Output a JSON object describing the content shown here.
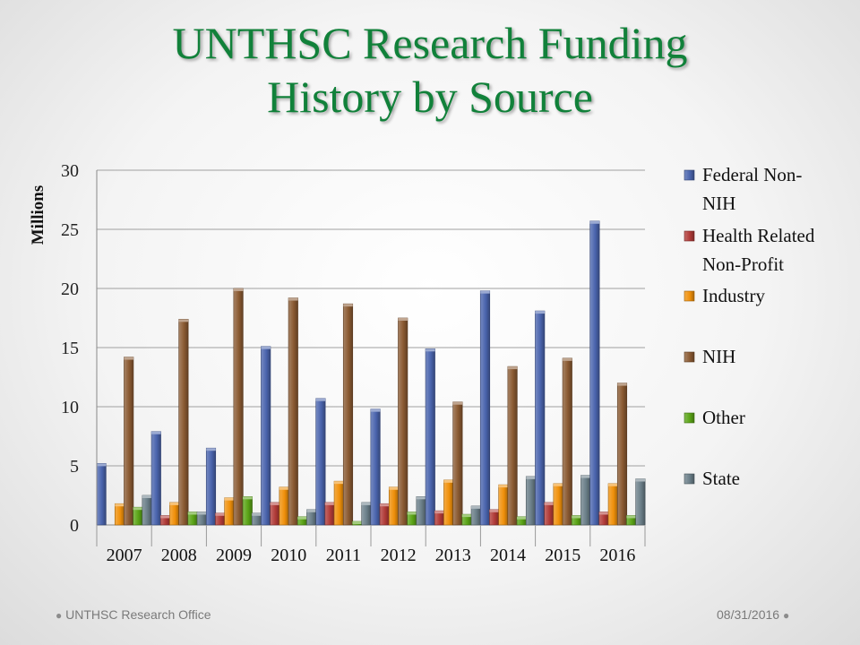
{
  "slide": {
    "title_line1": "UNTHSC Research Funding",
    "title_line2": "History by Source",
    "footer_left": "UNTHSC Research Office",
    "footer_right": "08/31/2016"
  },
  "chart_data": {
    "type": "bar",
    "ylabel": "Millions",
    "ylim": [
      0,
      30
    ],
    "yticks": [
      0,
      5,
      10,
      15,
      20,
      25,
      30
    ],
    "grid": true,
    "legend_position": "right",
    "categories": [
      "2007",
      "2008",
      "2009",
      "2010",
      "2011",
      "2012",
      "2013",
      "2014",
      "2015",
      "2016"
    ],
    "series": [
      {
        "name": "Federal Non-NIH",
        "legend_lines": [
          "Federal Non-",
          "NIH"
        ],
        "color": "#4a64ad",
        "values": [
          5.2,
          7.9,
          6.5,
          15.1,
          10.7,
          9.8,
          14.9,
          19.8,
          18.1,
          25.7
        ]
      },
      {
        "name": "Health Related Non-Profit",
        "legend_lines": [
          "Health Related",
          "Non-Profit"
        ],
        "color": "#b03a37",
        "values": [
          0.0,
          0.8,
          1.0,
          1.9,
          1.9,
          1.8,
          1.2,
          1.3,
          1.9,
          1.1
        ]
      },
      {
        "name": "Industry",
        "legend_lines": [
          "Industry"
        ],
        "color": "#f0900a",
        "values": [
          1.8,
          1.9,
          2.3,
          3.2,
          3.7,
          3.2,
          3.8,
          3.4,
          3.5,
          3.5
        ]
      },
      {
        "name": "NIH",
        "legend_lines": [
          "NIH"
        ],
        "color": "#8a5a32",
        "values": [
          14.2,
          17.4,
          20.0,
          19.2,
          18.7,
          17.5,
          10.4,
          13.4,
          14.1,
          12.0
        ]
      },
      {
        "name": "Other",
        "legend_lines": [
          "Other"
        ],
        "color": "#5aa416",
        "values": [
          1.5,
          1.1,
          2.4,
          0.7,
          0.3,
          1.1,
          0.9,
          0.7,
          0.8,
          0.8
        ]
      },
      {
        "name": "State",
        "legend_lines": [
          "State"
        ],
        "color": "#6a7e88",
        "values": [
          2.5,
          1.1,
          1.0,
          1.3,
          1.9,
          2.4,
          1.6,
          4.1,
          4.2,
          3.9
        ]
      }
    ]
  }
}
